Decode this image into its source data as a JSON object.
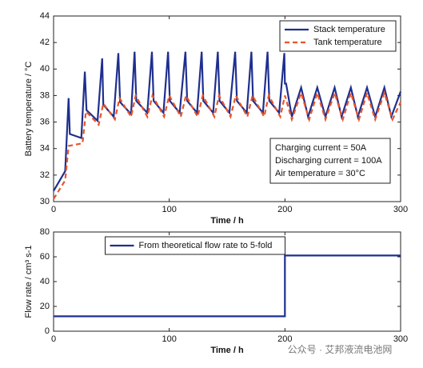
{
  "chart_data": [
    {
      "type": "line",
      "xlabel": "Time / h",
      "ylabel": "Battery temperature / °C",
      "xlim": [
        0,
        300
      ],
      "xticks": [
        0,
        100,
        200,
        300
      ],
      "ylim": [
        30,
        44
      ],
      "yticks": [
        30,
        32,
        34,
        36,
        38,
        40,
        42,
        44
      ],
      "legend": "upper right",
      "series": [
        {
          "name": "Stack temperature",
          "color": "#1f2f8f",
          "linestyle": "solid",
          "x": [
            0,
            10,
            13,
            14,
            24,
            27,
            28.5,
            38,
            42,
            43,
            52,
            56,
            57.5,
            67,
            70,
            71.5,
            81,
            85,
            86.5,
            95,
            99,
            100.5,
            109,
            114,
            115.5,
            124,
            128,
            129.5,
            138,
            142,
            143.5,
            152,
            157,
            158.5,
            167,
            171,
            172.5,
            181,
            185,
            186.5,
            195,
            199.5,
            200,
            201,
            206,
            214,
            220,
            228,
            235,
            243,
            249,
            257,
            263,
            271,
            278,
            286,
            292,
            300
          ],
          "values": [
            30.8,
            32.3,
            37.8,
            35.1,
            34.8,
            39.8,
            36.9,
            36.1,
            40.8,
            37.3,
            36.4,
            41.2,
            37.5,
            36.6,
            41.3,
            37.6,
            36.7,
            41.3,
            37.6,
            36.7,
            41.3,
            37.6,
            36.7,
            41.3,
            37.6,
            36.7,
            41.3,
            37.6,
            36.7,
            41.3,
            37.6,
            36.7,
            41.3,
            37.6,
            36.7,
            41.3,
            37.6,
            36.7,
            41.3,
            37.6,
            36.7,
            41.2,
            38.9,
            38.9,
            36.4,
            38.6,
            36.4,
            38.6,
            36.4,
            38.6,
            36.4,
            38.6,
            36.4,
            38.6,
            36.4,
            38.6,
            36.4,
            38.3
          ]
        },
        {
          "name": "Tank temperature",
          "color": "#e8552a",
          "linestyle": "dashed",
          "x": [
            0,
            10,
            13,
            25,
            28,
            39,
            43,
            53,
            57,
            67,
            71,
            81,
            85.5,
            95.5,
            100,
            110,
            114.5,
            124.5,
            129,
            139,
            143,
            153,
            157.5,
            167.5,
            172,
            182,
            186,
            196,
            200,
            206,
            214,
            221,
            228,
            235,
            243,
            250,
            257,
            264,
            271,
            278,
            286,
            293,
            300
          ],
          "values": [
            30.2,
            31.6,
            34.2,
            34.4,
            36.8,
            35.8,
            37.4,
            36.2,
            37.8,
            36.4,
            38,
            36.4,
            38,
            36.4,
            38,
            36.4,
            38,
            36.4,
            38,
            36.4,
            38,
            36.4,
            38,
            36.4,
            38,
            36.4,
            38,
            36.4,
            38,
            36.2,
            38.2,
            36.2,
            38.2,
            36.2,
            38.2,
            36.2,
            38.2,
            36.2,
            38.2,
            36.2,
            38.2,
            36.2,
            37.5
          ]
        }
      ],
      "annotations": [
        "Charging current = 50A",
        "Discharging current = 100A",
        "Air temperature = 30°C"
      ]
    },
    {
      "type": "line",
      "xlabel": "Time / h",
      "ylabel": "Flow rate / cm³ s-1",
      "xlim": [
        0,
        300
      ],
      "xticks": [
        0,
        100,
        200,
        300
      ],
      "ylim": [
        0,
        80
      ],
      "yticks": [
        0,
        20,
        40,
        60,
        80
      ],
      "legend": "upper center",
      "series": [
        {
          "name": "From theoretical flow  rate to 5-fold",
          "color": "#1f2f8f",
          "linestyle": "solid",
          "x": [
            0,
            200,
            200,
            300
          ],
          "values": [
            12,
            12,
            61,
            61
          ]
        }
      ]
    }
  ],
  "watermark": "公众号 · 艾邦液流电池网"
}
